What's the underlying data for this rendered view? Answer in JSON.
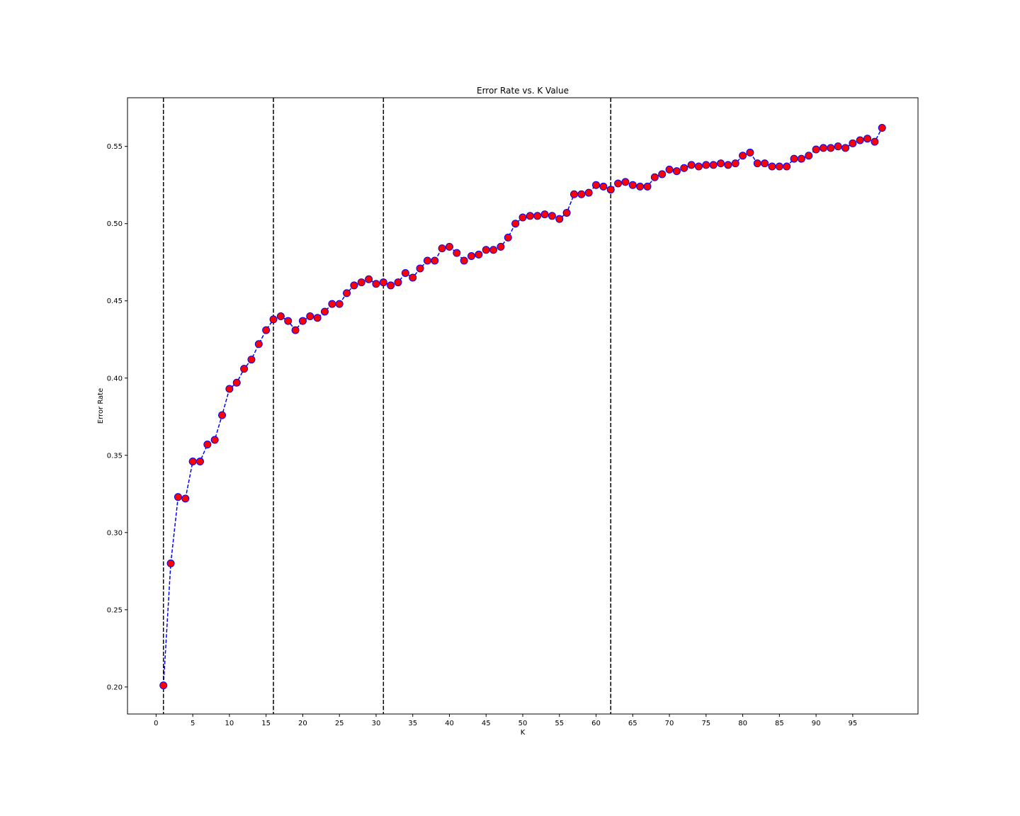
{
  "chart_data": {
    "type": "line",
    "title": "Error Rate vs. K Value",
    "xlabel": "K",
    "ylabel": "Error Rate",
    "xlim": [
      -3.9,
      103.9
    ],
    "ylim": [
      0.1825,
      0.5815
    ],
    "x_ticks": [
      0,
      5,
      10,
      15,
      20,
      25,
      30,
      35,
      40,
      45,
      50,
      55,
      60,
      65,
      70,
      75,
      80,
      85,
      90,
      95
    ],
    "y_ticks": [
      0.2,
      0.25,
      0.3,
      0.35,
      0.4,
      0.45,
      0.5,
      0.55
    ],
    "y_tick_labels": [
      "0.20",
      "0.25",
      "0.30",
      "0.35",
      "0.40",
      "0.45",
      "0.50",
      "0.55"
    ],
    "vlines": [
      1,
      16,
      31,
      62
    ],
    "grid": false,
    "line_color": "#0000ff",
    "line_style": "dashed",
    "marker_face": "#ff0000",
    "marker_edge": "#0000ff",
    "vline_color": "#000000",
    "series": [
      {
        "x": [
          1,
          2,
          3,
          4,
          5,
          6,
          7,
          8,
          9,
          10,
          11,
          12,
          13,
          14,
          15,
          16,
          17,
          18,
          19,
          20,
          21,
          22,
          23,
          24,
          25,
          26,
          27,
          28,
          29,
          30,
          31,
          32,
          33,
          34,
          35,
          36,
          37,
          38,
          39,
          40,
          41,
          42,
          43,
          44,
          45,
          46,
          47,
          48,
          49,
          50,
          51,
          52,
          53,
          54,
          55,
          56,
          57,
          58,
          59,
          60,
          61,
          62,
          63,
          64,
          65,
          66,
          67,
          68,
          69,
          70,
          71,
          72,
          73,
          74,
          75,
          76,
          77,
          78,
          79,
          80,
          81,
          82,
          83,
          84,
          85,
          86,
          87,
          88,
          89,
          90,
          91,
          92,
          93,
          94,
          95,
          96,
          97,
          98,
          99
        ],
        "values": [
          0.201,
          0.28,
          0.323,
          0.322,
          0.346,
          0.346,
          0.357,
          0.36,
          0.376,
          0.393,
          0.397,
          0.406,
          0.412,
          0.422,
          0.431,
          0.438,
          0.44,
          0.437,
          0.431,
          0.437,
          0.44,
          0.439,
          0.443,
          0.448,
          0.448,
          0.455,
          0.46,
          0.462,
          0.464,
          0.461,
          0.462,
          0.46,
          0.462,
          0.468,
          0.465,
          0.471,
          0.476,
          0.476,
          0.484,
          0.485,
          0.481,
          0.476,
          0.479,
          0.48,
          0.483,
          0.483,
          0.485,
          0.491,
          0.5,
          0.504,
          0.505,
          0.505,
          0.506,
          0.505,
          0.503,
          0.507,
          0.519,
          0.519,
          0.52,
          0.525,
          0.524,
          0.522,
          0.526,
          0.527,
          0.525,
          0.524,
          0.524,
          0.53,
          0.532,
          0.535,
          0.534,
          0.536,
          0.538,
          0.537,
          0.538,
          0.538,
          0.539,
          0.538,
          0.539,
          0.544,
          0.546,
          0.539,
          0.539,
          0.537,
          0.537,
          0.537,
          0.542,
          0.542,
          0.544,
          0.548,
          0.549,
          0.549,
          0.55,
          0.549,
          0.552,
          0.554,
          0.555,
          0.553,
          0.562
        ]
      }
    ]
  }
}
